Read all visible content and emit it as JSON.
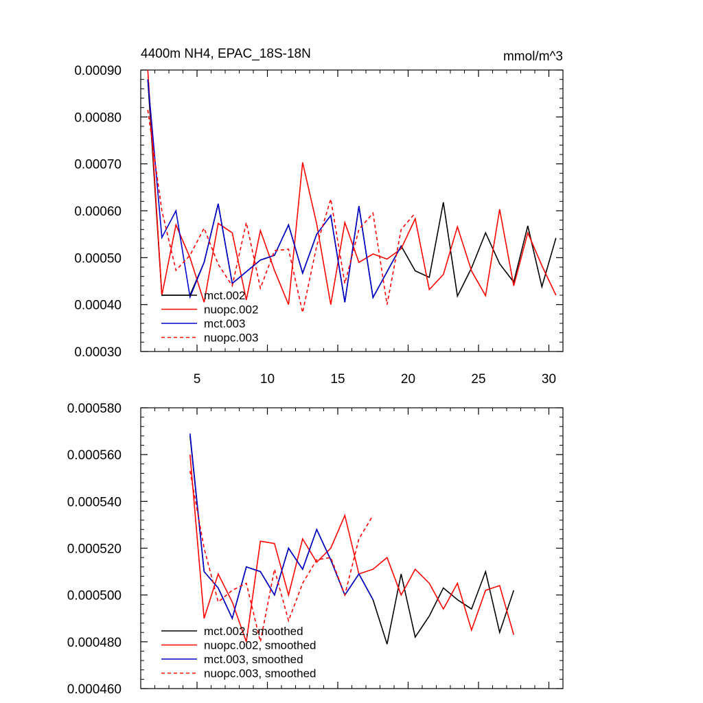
{
  "colors": {
    "mct_002": "#000000",
    "nuopc_002": "#ff0000",
    "mct_003": "#0000cc",
    "nuopc_003": "#ff0000"
  },
  "chart_data": [
    {
      "type": "line",
      "title": "4400m NH4, EPAC_18S-18N",
      "units": "mmol/m^3",
      "xlim": [
        1,
        31
      ],
      "ylim": [
        0.0003,
        0.0009
      ],
      "xticks": [
        5,
        10,
        15,
        20,
        25,
        30
      ],
      "xtick_labels": [
        "5",
        "10",
        "15",
        "20",
        "25",
        "30"
      ],
      "yticks": [
        0.0003,
        0.0004,
        0.0005,
        0.0006,
        0.0007,
        0.0008,
        0.0009
      ],
      "ytick_labels": [
        "0.00030",
        "0.00040",
        "0.00050",
        "0.00060",
        "0.00070",
        "0.00080",
        "0.00090"
      ],
      "legend_position": "bottom-left",
      "series": [
        {
          "name": "mct.002",
          "color": "#000000",
          "dash": "solid",
          "x": [
            1.5,
            2.5,
            3.5,
            4.5,
            5.5,
            6.5,
            7.5,
            8.5,
            9.5,
            10.5,
            11.5,
            12.5,
            13.5,
            14.5,
            15.5,
            16.5,
            17.5,
            18.5,
            19.5,
            20.5,
            21.5,
            22.5,
            23.5,
            24.5,
            25.5,
            26.5,
            27.5,
            28.5,
            29.5,
            30.5
          ],
          "values": [
            0.00088,
            0.00042,
            0.00042,
            0.00042,
            0.00049,
            0.000615,
            0.000445,
            0.00047,
            0.000495,
            0.000505,
            0.00057,
            0.000467,
            0.00055,
            0.00059,
            0.000405,
            0.00061,
            0.000415,
            0.00047,
            0.000525,
            0.000472,
            0.000458,
            0.000618,
            0.000418,
            0.000478,
            0.000553,
            0.000487,
            0.000448,
            0.000568,
            0.000438,
            0.000542
          ]
        },
        {
          "name": "nuopc.002",
          "color": "#ff0000",
          "dash": "solid",
          "x": [
            1.5,
            2.5,
            3.5,
            4.5,
            5.5,
            6.5,
            7.5,
            8.5,
            9.5,
            10.5,
            11.5,
            12.5,
            13.5,
            14.5,
            15.5,
            16.5,
            17.5,
            18.5,
            19.5,
            20.5,
            21.5,
            22.5,
            23.5,
            24.5,
            25.5,
            26.5,
            27.5,
            28.5,
            29.5,
            30.5
          ],
          "values": [
            0.0009,
            0.00042,
            0.00057,
            0.0005,
            0.000405,
            0.000573,
            0.000553,
            0.00041,
            0.000558,
            0.000473,
            0.0004,
            0.000703,
            0.000572,
            0.0004,
            0.000575,
            0.00049,
            0.000508,
            0.000497,
            0.000519,
            0.000583,
            0.000432,
            0.000464,
            0.000566,
            0.000472,
            0.000419,
            0.000603,
            0.00044,
            0.000553,
            0.000483,
            0.00042
          ]
        },
        {
          "name": "mct.003",
          "color": "#0000cc",
          "dash": "solid",
          "x": [
            1.5,
            2.5,
            3.5,
            4.5,
            5.5,
            6.5,
            7.5,
            8.5,
            9.5,
            10.5,
            11.5,
            12.5,
            13.5,
            14.5,
            15.5,
            16.5,
            17.5,
            18.5,
            19.5
          ],
          "values": [
            0.00088,
            0.000543,
            0.0006,
            0.000416,
            0.00049,
            0.000615,
            0.000445,
            0.00047,
            0.000495,
            0.000505,
            0.00057,
            0.000467,
            0.00055,
            0.00059,
            0.000405,
            0.00061,
            0.000415,
            0.00047,
            0.000525
          ]
        },
        {
          "name": "nuopc.003",
          "color": "#ff0000",
          "dash": "dashed",
          "x": [
            1.5,
            2.5,
            3.5,
            4.5,
            5.5,
            6.5,
            7.5,
            8.5,
            9.5,
            10.5,
            11.5,
            12.5,
            13.5,
            14.5,
            15.5,
            16.5,
            17.5,
            18.5,
            19.5,
            20.5
          ],
          "values": [
            0.000815,
            0.0006,
            0.000473,
            0.000505,
            0.000563,
            0.000486,
            0.00044,
            0.000575,
            0.000435,
            0.000515,
            0.000518,
            0.000383,
            0.000525,
            0.000625,
            0.000445,
            0.00056,
            0.000595,
            0.0004,
            0.00056,
            0.000595
          ]
        }
      ]
    },
    {
      "type": "line",
      "title": "",
      "xlim": [
        1,
        31
      ],
      "ylim": [
        0.00046,
        0.00058
      ],
      "xticks": [
        5,
        10,
        15,
        20,
        25,
        30
      ],
      "xtick_labels": [],
      "yticks": [
        0.00046,
        0.00048,
        0.0005,
        0.00052,
        0.00054,
        0.00056,
        0.00058
      ],
      "ytick_labels": [
        "0.000460",
        "0.000480",
        "0.000500",
        "0.000520",
        "0.000540",
        "0.000560",
        "0.000580"
      ],
      "legend_position": "bottom-left",
      "series": [
        {
          "name": "mct.002, smoothed",
          "color": "#000000",
          "dash": "solid",
          "x": [
            4.5,
            5.5,
            6.5,
            7.5,
            8.5,
            9.5,
            10.5,
            11.5,
            12.5,
            13.5,
            14.5,
            15.5,
            16.5,
            17.5,
            18.5,
            19.5,
            20.5,
            21.5,
            22.5,
            23.5,
            24.5,
            25.5,
            26.5,
            27.5
          ],
          "values": [
            0.000568,
            0.00051,
            0.000503,
            0.00049,
            0.000512,
            0.00051,
            0.0005,
            0.00052,
            0.000511,
            0.000528,
            0.000515,
            0.0005,
            0.000509,
            0.000498,
            0.000479,
            0.000509,
            0.000482,
            0.000491,
            0.000503,
            0.000498,
            0.000494,
            0.00051,
            0.000484,
            0.000502
          ]
        },
        {
          "name": "nuopc.002, smoothed",
          "color": "#ff0000",
          "dash": "solid",
          "x": [
            4.5,
            5.5,
            6.5,
            7.5,
            8.5,
            9.5,
            10.5,
            11.5,
            12.5,
            13.5,
            14.5,
            15.5,
            16.5,
            17.5,
            18.5,
            19.5,
            20.5,
            21.5,
            22.5,
            23.5,
            24.5,
            25.5,
            26.5,
            27.5
          ],
          "values": [
            0.00056,
            0.00049,
            0.000509,
            0.000497,
            0.00048,
            0.000523,
            0.000522,
            0.0005,
            0.000524,
            0.000514,
            0.00052,
            0.000534,
            0.000509,
            0.000511,
            0.000516,
            0.0005,
            0.000511,
            0.000505,
            0.000494,
            0.000505,
            0.000485,
            0.000502,
            0.000504,
            0.000483
          ]
        },
        {
          "name": "mct.003, smoothed",
          "color": "#0000cc",
          "dash": "solid",
          "x": [
            4.5,
            5.5,
            6.5,
            7.5,
            8.5,
            9.5,
            10.5,
            11.5,
            12.5,
            13.5,
            14.5,
            15.5,
            16.5,
            17.5
          ],
          "values": [
            0.000569,
            0.00051,
            0.000503,
            0.00049,
            0.000512,
            0.00051,
            0.0005,
            0.00052,
            0.000511,
            0.000528,
            0.000515,
            0.0005,
            0.000509,
            0.000498
          ]
        },
        {
          "name": "nuopc.003, smoothed",
          "color": "#ff0000",
          "dash": "dashed",
          "x": [
            4.5,
            5.5,
            6.5,
            7.5,
            8.5,
            9.5,
            10.5,
            11.5,
            12.5,
            13.5,
            14.5,
            15.5,
            16.5,
            17.5
          ],
          "values": [
            0.000553,
            0.00052,
            0.000497,
            0.000502,
            0.000505,
            0.00048,
            0.000511,
            0.000489,
            0.000505,
            0.000515,
            0.000516,
            0.0005,
            0.000524,
            0.000534
          ]
        }
      ]
    }
  ]
}
